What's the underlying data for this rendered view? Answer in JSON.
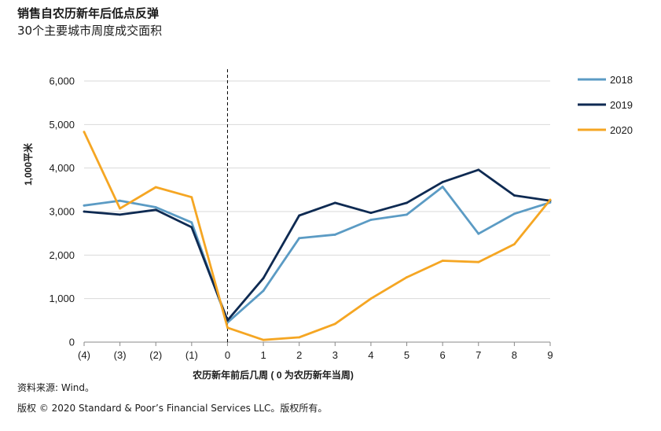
{
  "header": {
    "title": "销售自农历新年后低点反弹",
    "subtitle": "30个主要城市周度成交面积"
  },
  "footer": {
    "source": "资料来源: Wind。",
    "copyright": "版权 © 2020 Standard & Poor’s Financial Services LLC。版权所有。"
  },
  "chart_data": {
    "type": "line",
    "ylabel": "1,000平米",
    "xlabel": "农历新年前后几周 ( 0 为农历新年当周)",
    "categories": [
      "(4)",
      "(3)",
      "(2)",
      "(1)",
      "0",
      "1",
      "2",
      "3",
      "4",
      "5",
      "6",
      "7",
      "8",
      "9"
    ],
    "ylim": [
      0,
      6000
    ],
    "yticks": [
      0,
      1000,
      2000,
      3000,
      4000,
      5000,
      6000
    ],
    "ytick_labels": [
      "0",
      "1,000",
      "2,000",
      "3,000",
      "4,000",
      "5,000",
      "6,000"
    ],
    "grid": true,
    "legend_position": "right",
    "reference_line_at": "0",
    "series": [
      {
        "name": "2018",
        "color": "#5b9bc4",
        "values": [
          3140,
          3250,
          3100,
          2750,
          450,
          1180,
          2390,
          2470,
          2810,
          2930,
          3570,
          2490,
          2950,
          3210
        ]
      },
      {
        "name": "2019",
        "color": "#0e2a52",
        "values": [
          3000,
          2930,
          3040,
          2640,
          500,
          1470,
          2910,
          3200,
          2970,
          3200,
          3680,
          3960,
          3370,
          3250
        ]
      },
      {
        "name": "2020",
        "color": "#f5a623",
        "values": [
          4830,
          3070,
          3560,
          3330,
          330,
          50,
          110,
          420,
          1000,
          1490,
          1870,
          1840,
          2250,
          3270
        ]
      }
    ]
  }
}
